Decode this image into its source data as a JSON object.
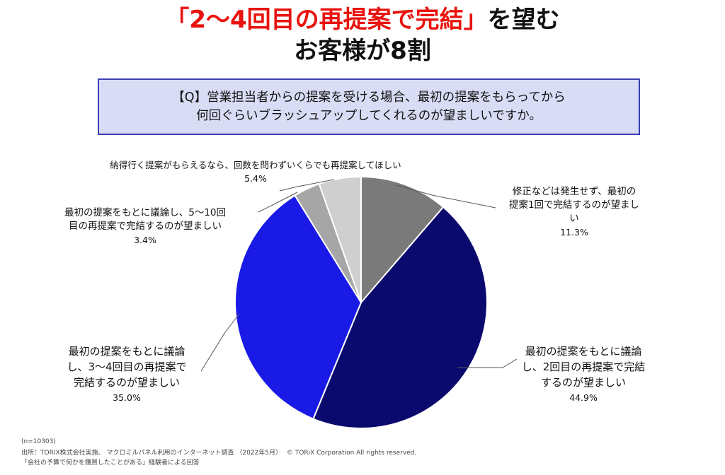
{
  "title": {
    "line1_red": "「2〜4回目の再提案で完結」",
    "line1_black": "を望む",
    "line2": "お客様が8割"
  },
  "question": {
    "line1": "【Q】営業担当者からの提案を受ける場合、最初の提案をもらってから",
    "line2": "何回ぐらいブラッシュアップしてくれるのが望ましいですか。"
  },
  "chart_data": {
    "type": "pie",
    "slices": [
      {
        "label": "修正などは発生せず、最初の提案1回で完結するのが望ましい",
        "value": 11.3,
        "value_label": "11.3%",
        "color": "#7a7a7a"
      },
      {
        "label": "最初の提案をもとに議論し、2回目の再提案で完結するのが望ましい",
        "value": 44.9,
        "value_label": "44.9%",
        "color": "#0a0a6e"
      },
      {
        "label": "最初の提案をもとに議論し、3〜4回目の再提案で完結するのが望ましい",
        "value": 35.0,
        "value_label": "35.0%",
        "color": "#1a1ae6"
      },
      {
        "label": "最初の提案をもとに議論し、5〜10回目の再提案で完結するのが望ましい",
        "value": 3.4,
        "value_label": "3.4%",
        "color": "#a6a6a6"
      },
      {
        "label": "納得行く提案がもらえるなら、回数を問わずいくらでも再提案してほしい",
        "value": 5.4,
        "value_label": "5.4%",
        "color": "#cfcfcf"
      }
    ]
  },
  "labels": {
    "s1": {
      "l1": "修正などは発生せず、最初の",
      "l2": "提案1回で完結するのが望まし",
      "l3": "い",
      "pct": "11.3%"
    },
    "s2": {
      "l1": "最初の提案をもとに議論",
      "l2": "し、2回目の再提案で完結",
      "l3": "するのが望ましい",
      "pct": "44.9%"
    },
    "s3": {
      "l1": "最初の提案をもとに議論",
      "l2": "し、3〜4回目の再提案で",
      "l3": "完結するのが望ましい",
      "pct": "35.0%"
    },
    "s4": {
      "l1": "最初の提案をもとに議論し、5〜10回",
      "l2": "目の再提案で完結するのが望ましい",
      "pct": "3.4%"
    },
    "s5": {
      "l1": "納得行く提案がもらえるなら、回数を問わずいくらでも再提案してほしい",
      "pct": "5.4%"
    }
  },
  "footer": {
    "n": "(n=10303)",
    "source": "出所：TORIX株式会社実施、 マクロミルパネル利用のインターネット調査 （2022年5月）",
    "copyright": "© TORiX Corporation All rights reserved.",
    "note": "「会社の予算で何かを購買したことがある」経験者による回答"
  }
}
